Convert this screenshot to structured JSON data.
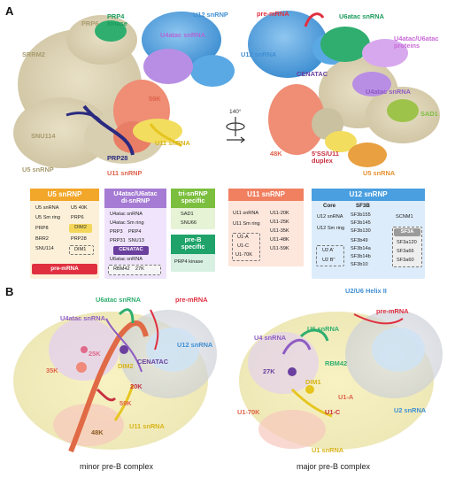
{
  "panel_a": {
    "letter": "A",
    "left_labels": {
      "prp6": "PRP6",
      "prp4_kinase": "PRP4\nkinase",
      "u4atac_snrna": "U4atac snRNA",
      "u12_snrnp": "U12 snRNP",
      "srrm2": "SRRM2",
      "k59": "59K",
      "snu114": "SNU114",
      "u11_snrna": "U11 snRNA",
      "u5_snrnp": "U5 snRNP",
      "prp28": "PRP28",
      "u11_snrnp": "U11 snRNP"
    },
    "right_labels": {
      "pre_mrna": "pre-mRNA",
      "u6atac_snrna": "U6atac snRNA",
      "u12_snrna": "U12 snRNA",
      "cenatac": "CENATAC",
      "u4atac_u6atac_proteins": "U4atac/U6atac\nproteins",
      "u4atac_snrna": "U4atac snRNA",
      "sad1": "SAD1",
      "k48": "48K",
      "five_ss_u11": "5'SS/U11\nduplex",
      "u5_snrna": "U5 snRNA"
    },
    "rotation": "140°"
  },
  "tables": {
    "u5": {
      "title": "U5 snRNP",
      "col1": [
        "U5 snRNA",
        "U5 Sm ring",
        "PRP8",
        "BRR2",
        "SNU114"
      ],
      "col2": [
        "U5 40K",
        "PRP6",
        "DIM2",
        "PRP28"
      ],
      "dashed": "DIM1",
      "footer": "pre-mRNA"
    },
    "u4u6": {
      "title": "U4atac/U6atac\ndi-snRNP",
      "rows": [
        "U4atac snRNA",
        "U4atac Sm ring",
        "PRP3    PRP4",
        "PRP31  SNU13"
      ],
      "badge": "CENATAC",
      "last": "U6atac snRNA",
      "dashed": "RBM42    27K"
    },
    "tri": {
      "title": "tri-snRNP\nspecific",
      "items": [
        "SAD1",
        "SNU66"
      ],
      "preb_title": "pre-B\nspecific",
      "preb_item": "PRP4 kinase"
    },
    "u11": {
      "title": "U11 snRNP",
      "col1": [
        "U11 snRNA",
        "U11 Sm ring"
      ],
      "dashed": [
        "U1-A",
        "U1-C",
        "U1-70K"
      ],
      "col2": [
        "U11-20K",
        "U11-25K",
        "U11-35K",
        "U11-48K",
        "U11-59K"
      ]
    },
    "u12": {
      "title": "U12 snRNP",
      "core_title": "Core",
      "core": [
        "U12 snRNA",
        "U12 Sm ring"
      ],
      "core_dashed": [
        "U2 A'",
        "U2 B''"
      ],
      "sf3b_title": "SF3B",
      "sf3b": [
        "SF3b155",
        "SF3b145",
        "SF3b130",
        "SF3b49",
        "SF3b14a",
        "SF3b14b",
        "SF3b10"
      ],
      "scnm1": "SCNM1",
      "sf3a_title": "SF3A",
      "sf3a": [
        "SF3a120",
        "SF3a66",
        "SF3a60"
      ]
    }
  },
  "panel_b": {
    "letter": "B",
    "minor": {
      "caption": "minor pre-B complex",
      "u6atac": "U6atac snRNA",
      "pre_mrna": "pre-mRNA",
      "u4atac": "U4atac snRNA",
      "u12": "U12 snRNA",
      "k25": "25K",
      "k35": "35K",
      "dim2": "DIM2",
      "cenatac": "CENATAC",
      "k20": "20K",
      "k59": "59K",
      "u11": "U11 snRNA",
      "k48": "48K"
    },
    "major": {
      "caption": "major pre-B complex",
      "u2u6": "U2/U6 Helix II",
      "pre_mrna": "pre-mRNA",
      "u4": "U4 snRNA",
      "u6": "U6 snRNA",
      "rbm42": "RBM42",
      "k27": "27K",
      "dim1": "DIM1",
      "u1a": "U1-A",
      "u170k": "U1-70K",
      "u1c": "U1-C",
      "u2": "U2 snRNA",
      "u1": "U1 snRNA"
    }
  },
  "colors": {
    "u5": "#f2a72a",
    "u4u6": "#a57bd3",
    "tri": "#7cbf3f",
    "preb": "#1fa36a",
    "u11": "#f08060",
    "u12": "#4a9fe0",
    "pre_mrna": "#e03040",
    "cenatac": "#6a3f9e",
    "dim2": "#f4d75a",
    "sf3a": "#9a9a9a"
  }
}
